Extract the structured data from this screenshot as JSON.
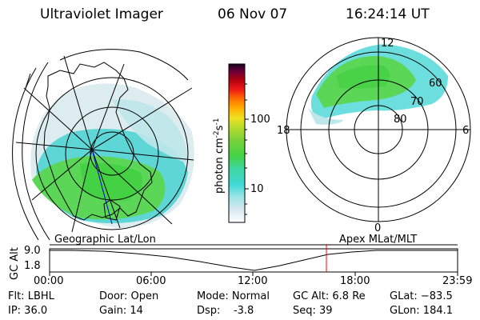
{
  "header": {
    "instrument": "Ultraviolet Imager",
    "date": "06 Nov 07",
    "time": "16:24:14 UT"
  },
  "colorbar": {
    "unit_label": "photon cm",
    "unit_sup1": "-2",
    "unit_mid": "s",
    "unit_sup2": "-1",
    "ticks": [
      "100",
      "10"
    ]
  },
  "polar_plot": {
    "mlt_labels": {
      "top": "12",
      "left": "18",
      "right": "6",
      "bottom": "0"
    },
    "lat_labels": [
      "60",
      "70",
      "80"
    ]
  },
  "timeline": {
    "left_label": "Geographic Lat/Lon",
    "right_label": "Apex MLat/MLT",
    "axis_label": "GC Alt",
    "y_ticks": [
      "9.0",
      "1.8"
    ],
    "x_ticks": [
      "00:00",
      "06:00",
      "12:00",
      "18:00",
      "23:59"
    ],
    "current_marker_color": "#ff0000"
  },
  "info": {
    "flt": "Flt: LBHL",
    "ip": "IP: 36.0",
    "door": "Door: Open",
    "gain": "Gain: 14",
    "mode": "Mode: Normal",
    "dsp": "Dsp:    -3.8",
    "gc_alt": "GC Alt: 6.8 Re",
    "seq": "Seq: 39",
    "glat": "GLat: −83.5",
    "glon": "GLon: 184.1"
  }
}
